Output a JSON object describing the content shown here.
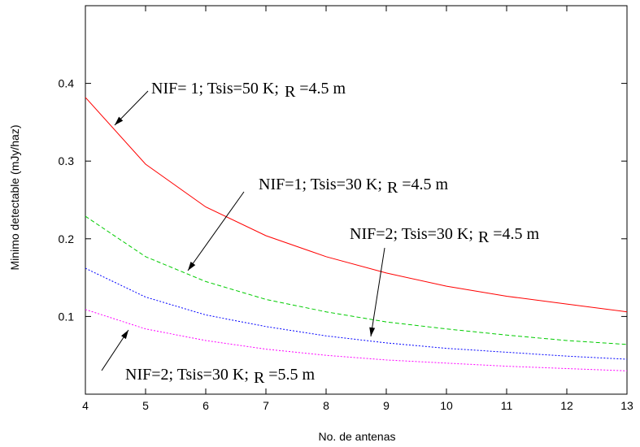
{
  "chart_data": {
    "type": "line",
    "title": "",
    "xlabel": "No. de antenas",
    "ylabel": "Minimo detectable (mJy/haz)",
    "xlim": [
      4,
      13
    ],
    "ylim": [
      0,
      0.5
    ],
    "xticks": [
      "4",
      "5",
      "6",
      "7",
      "8",
      "9",
      "10",
      "11",
      "12",
      "13"
    ],
    "yticks": [
      "0.1",
      "0.2",
      "0.3",
      "0.4"
    ],
    "ytick_values": [
      0.1,
      0.2,
      0.3,
      0.4
    ],
    "grid": false,
    "x": [
      4,
      5,
      6,
      7,
      8,
      9,
      10,
      11,
      12,
      13
    ],
    "series": [
      {
        "color": "#ff0000",
        "dash": "solid",
        "values": [
          0.382,
          0.296,
          0.241,
          0.204,
          0.177,
          0.156,
          0.139,
          0.126,
          0.116,
          0.106
        ]
      },
      {
        "color": "#00cc00",
        "dash": "dashed",
        "values": [
          0.229,
          0.177,
          0.145,
          0.122,
          0.106,
          0.093,
          0.084,
          0.076,
          0.069,
          0.064
        ]
      },
      {
        "color": "#0000ff",
        "dash": "dotted",
        "values": [
          0.162,
          0.125,
          0.102,
          0.087,
          0.075,
          0.066,
          0.059,
          0.054,
          0.049,
          0.045
        ]
      },
      {
        "color": "#ff00ff",
        "dash": "dotted",
        "values": [
          0.109,
          0.084,
          0.069,
          0.058,
          0.05,
          0.044,
          0.04,
          0.036,
          0.033,
          0.03
        ]
      }
    ],
    "annotations": [
      {
        "text_pre": "NIF= 1; Tsis=50 K;",
        "text_r": "R",
        "text_post": " =4.5 m"
      },
      {
        "text_pre": "NIF=1; Tsis=30 K;",
        "text_r": "R",
        "text_post": " =4.5 m"
      },
      {
        "text_pre": "NIF=2; Tsis=30 K;",
        "text_r": "R",
        "text_post": " =4.5 m"
      },
      {
        "text_pre": "NIF=2; Tsis=30 K;",
        "text_r": "R",
        "text_post": " =5.5 m"
      }
    ]
  }
}
